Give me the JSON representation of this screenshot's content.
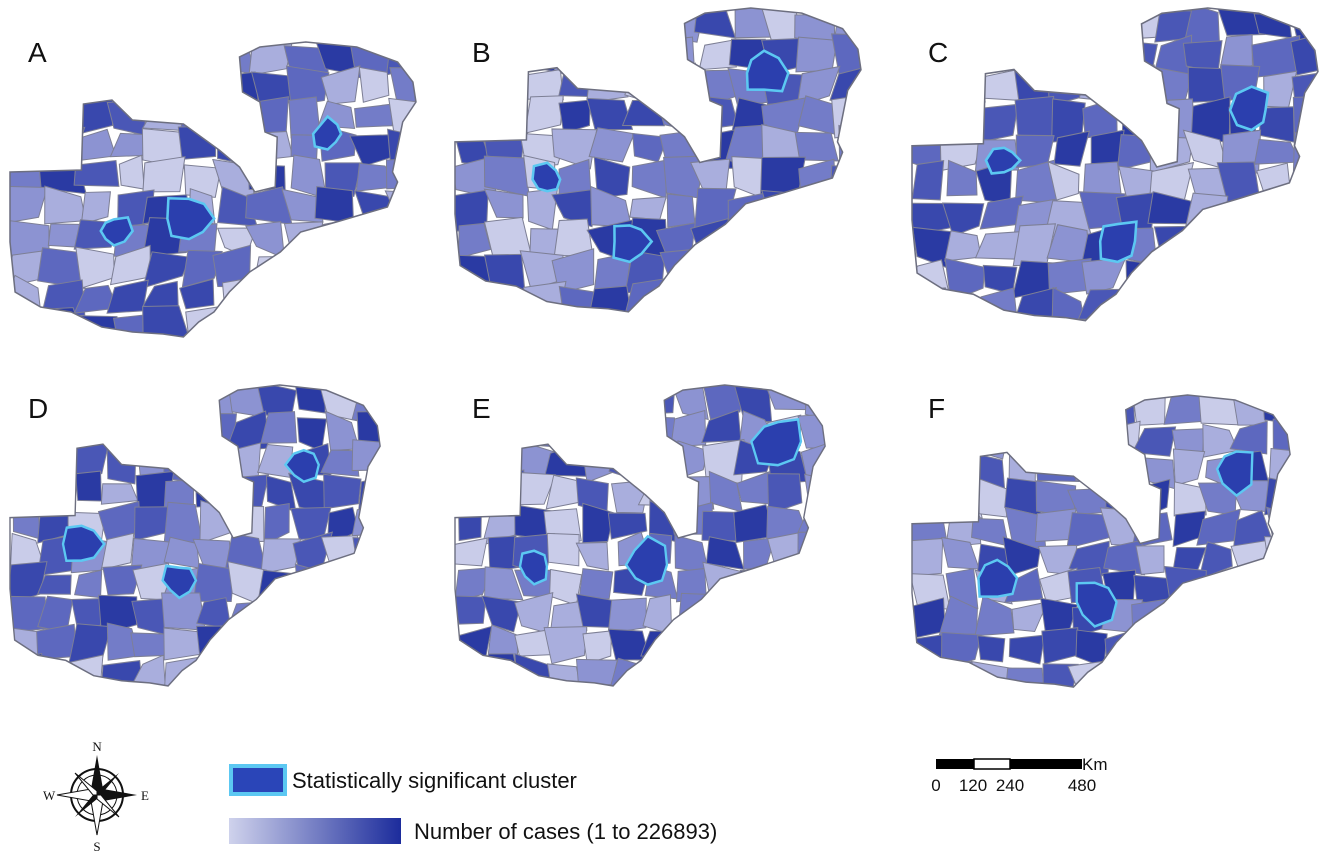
{
  "panels": [
    {
      "label": "A"
    },
    {
      "label": "B"
    },
    {
      "label": "C"
    },
    {
      "label": "D"
    },
    {
      "label": "E"
    },
    {
      "label": "F"
    }
  ],
  "legend": {
    "cluster": "Statistically significant cluster",
    "cases": "Number of cases (1 to 226893)"
  },
  "scale_bar": {
    "unit": "Km",
    "ticks": [
      "0",
      "120",
      "240",
      "480"
    ]
  },
  "compass": {
    "n": "N",
    "s": "S",
    "e": "E",
    "w": "W"
  }
}
